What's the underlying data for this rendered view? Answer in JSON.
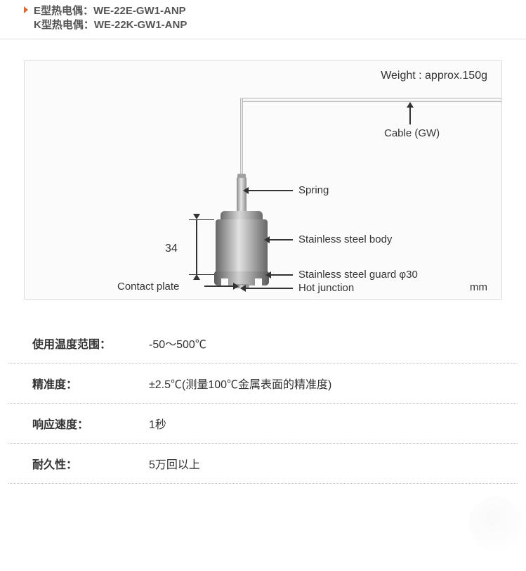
{
  "header": {
    "line1_prefix": "E型热电偶：",
    "line1_code": "WE-22E-GW1-ANP",
    "line2_prefix": "K型热电偶：",
    "line2_code": "WE-22K-GW1-ANP"
  },
  "diagram": {
    "weight_label": "Weight : approx.150g",
    "unit": "mm",
    "cable_label": "Cable (GW)",
    "spring_label": "Spring",
    "body_label": "Stainless steel body",
    "guard_label": "Stainless steel guard φ30",
    "hot_label": "Hot junction",
    "contact_label": "Contact plate",
    "dim_height": "34",
    "colors": {
      "border": "#dcdcdc",
      "bg": "#fbfbfb",
      "metal_dark": "#676767",
      "metal_light": "#e2e2e2",
      "line": "#333333"
    }
  },
  "specs": [
    {
      "label": "使用温度范围：",
      "value": "-50～500℃"
    },
    {
      "label": "精准度：",
      "value": "±2.5℃(测量100℃金属表面的精准度)"
    },
    {
      "label": "响应速度：",
      "value": "1秒"
    },
    {
      "label": "耐久性：",
      "value": "5万回以上"
    }
  ]
}
